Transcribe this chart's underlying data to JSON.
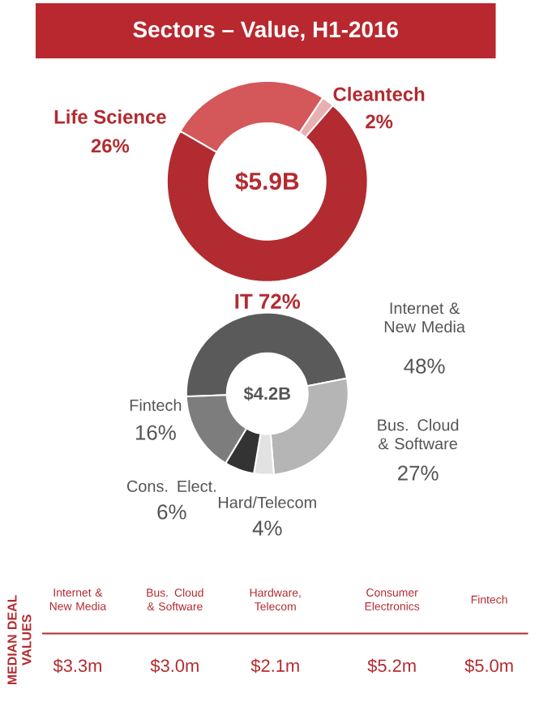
{
  "chart_data": [
    {
      "type": "donut",
      "title": "Sectors – Value, H1-2016",
      "categories": [
        "Life Science",
        "Cleantech",
        "IT"
      ],
      "values": [
        26,
        2,
        72
      ],
      "colors": [
        "#d4575a",
        "#e8b0b0",
        "#b22b30"
      ],
      "value_labels": [
        "26%",
        "2%",
        "72%"
      ],
      "annotations": [
        "$5.9B"
      ]
    },
    {
      "type": "donut",
      "categories": [
        "Internet & New Media",
        "Bus. Cloud & Software",
        "Hard/Telecom",
        "Cons. Elect.",
        "Fintech"
      ],
      "values": [
        48,
        27,
        4,
        6,
        16
      ],
      "colors": [
        "#5a5a5a",
        "#b5b5b5",
        "#e2e2e2",
        "#333333",
        "#7d7d7d"
      ],
      "value_labels": [
        "48%",
        "27%",
        "4%",
        "6%",
        "16%"
      ],
      "annotations": [
        "$4.2B"
      ]
    },
    {
      "type": "other",
      "ylabel": "MEDIAN DEAL VALUES",
      "categories": [
        "Internet & New Media",
        "Bus. Cloud & Software",
        "Hardware, Telecom",
        "Consumer Electronics",
        "Fintech"
      ],
      "value_labels": [
        "$3.3m",
        "$3.0m",
        "$2.1m",
        "$5.2m",
        "$5.0m"
      ]
    }
  ]
}
